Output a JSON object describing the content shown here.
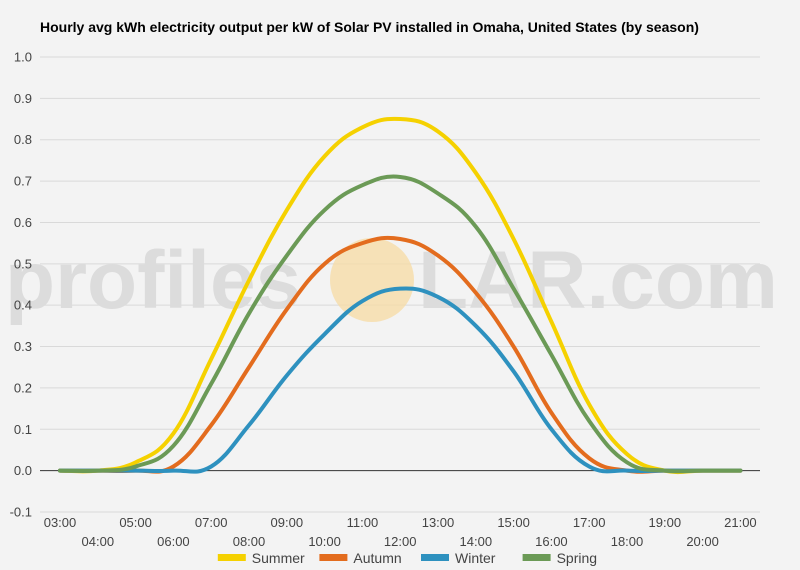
{
  "watermark": {
    "left": "profiles",
    "right": "LAR.com"
  },
  "chart_data": {
    "type": "line",
    "title": "Hourly avg kWh electricity output per kW of Solar PV installed in Omaha, United States (by season)",
    "xlabel": "",
    "ylabel": "",
    "ylim": [
      -0.1,
      1.0
    ],
    "yticks": [
      -0.1,
      0.0,
      0.1,
      0.2,
      0.3,
      0.4,
      0.5,
      0.6,
      0.7,
      0.8,
      0.9,
      1.0
    ],
    "yticklabels": [
      "-0.1",
      "0.0",
      "0.1",
      "0.2",
      "0.3",
      "0.4",
      "0.5",
      "0.6",
      "0.7",
      "0.8",
      "0.9",
      "1.0"
    ],
    "x": [
      "03:00",
      "04:00",
      "05:00",
      "06:00",
      "07:00",
      "08:00",
      "09:00",
      "10:00",
      "11:00",
      "12:00",
      "13:00",
      "14:00",
      "15:00",
      "16:00",
      "17:00",
      "18:00",
      "19:00",
      "20:00",
      "21:00"
    ],
    "grid": true,
    "legend": "bottom",
    "series": [
      {
        "name": "Summer",
        "color": "#f5d100",
        "values": [
          0.0,
          0.0,
          0.02,
          0.09,
          0.27,
          0.46,
          0.63,
          0.76,
          0.83,
          0.85,
          0.82,
          0.72,
          0.56,
          0.36,
          0.16,
          0.04,
          0.0,
          0.0,
          0.0
        ]
      },
      {
        "name": "Autumn",
        "color": "#e36c1e",
        "values": [
          0.0,
          0.0,
          0.0,
          0.01,
          0.11,
          0.25,
          0.39,
          0.5,
          0.55,
          0.56,
          0.52,
          0.43,
          0.3,
          0.14,
          0.03,
          0.0,
          0.0,
          0.0,
          0.0
        ]
      },
      {
        "name": "Winter",
        "color": "#2e91bf",
        "values": [
          0.0,
          0.0,
          0.0,
          0.0,
          0.01,
          0.11,
          0.23,
          0.33,
          0.41,
          0.44,
          0.42,
          0.35,
          0.24,
          0.1,
          0.01,
          0.0,
          0.0,
          0.0,
          0.0
        ]
      },
      {
        "name": "Spring",
        "color": "#6b9a56",
        "values": [
          0.0,
          0.0,
          0.01,
          0.06,
          0.21,
          0.38,
          0.52,
          0.63,
          0.69,
          0.71,
          0.67,
          0.59,
          0.44,
          0.28,
          0.12,
          0.02,
          0.0,
          0.0,
          0.0
        ]
      }
    ]
  }
}
